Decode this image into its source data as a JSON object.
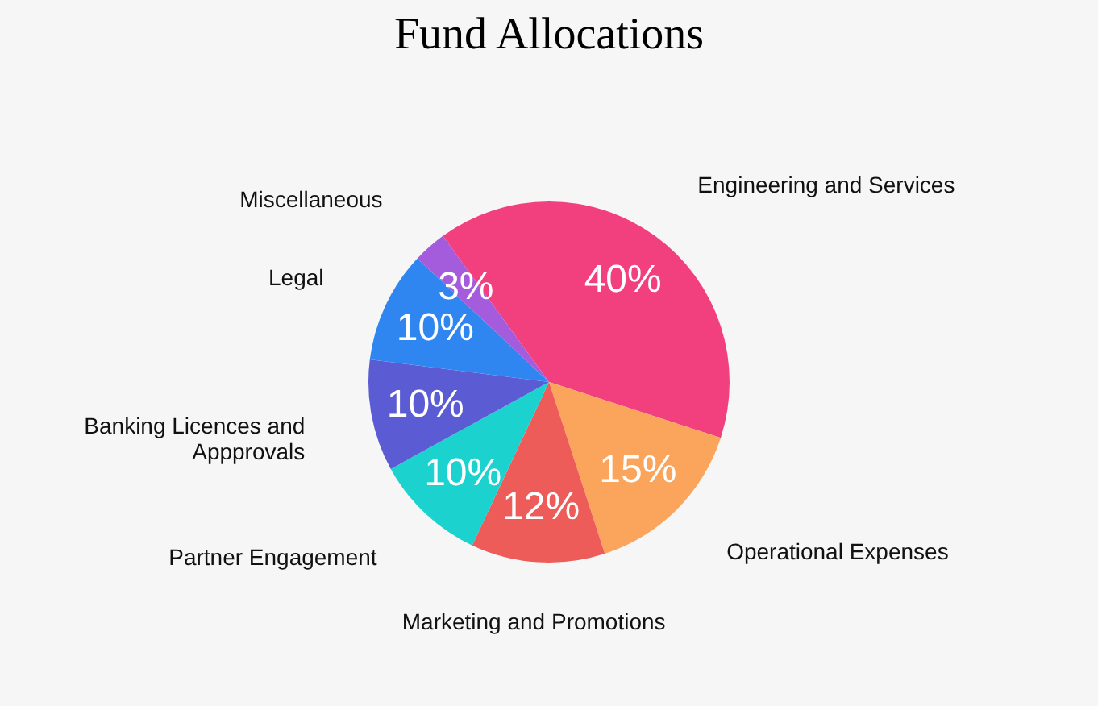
{
  "chart_data": {
    "type": "pie",
    "title": "Fund Allocations",
    "categories": [
      "Engineering and Services",
      "Operational Expenses",
      "Marketing and Promotions",
      "Partner Engagement",
      "Banking Licences and Appprovals",
      "Legal",
      "Miscellaneous"
    ],
    "values": [
      40,
      15,
      12,
      10,
      10,
      10,
      3
    ],
    "colors": [
      "#f2407f",
      "#fba45c",
      "#ee5c5a",
      "#1bd2cf",
      "#5b5cd4",
      "#2f86f1",
      "#a45bdc"
    ],
    "value_labels": [
      "40%",
      "15%",
      "12%",
      "10%",
      "10%",
      "10%",
      "3%"
    ]
  }
}
